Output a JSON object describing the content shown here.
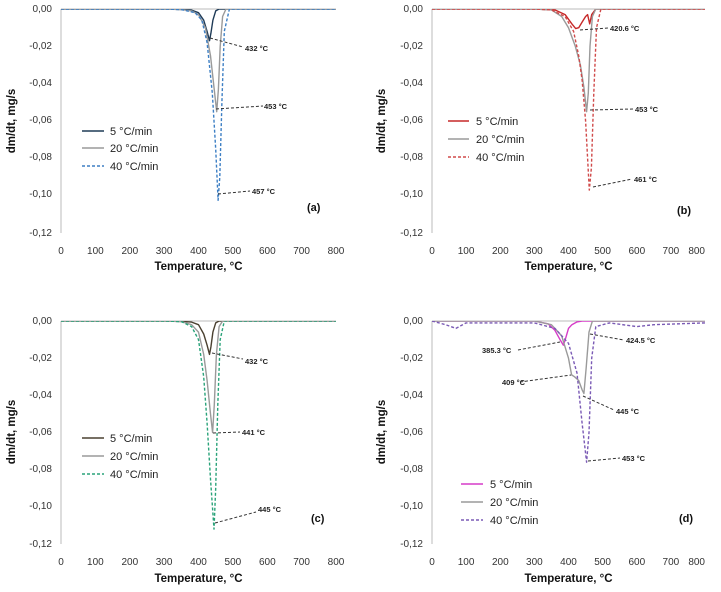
{
  "chart_data": [
    {
      "type": "line",
      "panel": "(a)",
      "xlabel": "Temperature, °C",
      "ylabel": "dm/dt, mg/s",
      "xlim": [
        0,
        800
      ],
      "ylim": [
        -0.12,
        0
      ],
      "xticks": [
        "0",
        "100",
        "200",
        "300",
        "400",
        "500",
        "600",
        "700",
        "800"
      ],
      "yticks": [
        "0,00",
        "-0,02",
        "-0,04",
        "-0,06",
        "-0,08",
        "-0,10",
        "-0,12"
      ],
      "legend_position": "middle-left",
      "series": [
        {
          "name": "5 °C/min",
          "color": "#1f3b57",
          "dash": "solid",
          "x": [
            0,
            300,
            360,
            380,
            400,
            415,
            425,
            432,
            436,
            442,
            450,
            460,
            480,
            800
          ],
          "y": [
            0,
            0,
            -0.0003,
            -0.0006,
            -0.002,
            -0.006,
            -0.012,
            -0.017,
            -0.013,
            -0.006,
            -0.001,
            0,
            0,
            0
          ]
        },
        {
          "name": "20 °C/min",
          "color": "#9a9a9a",
          "dash": "solid",
          "x": [
            0,
            300,
            350,
            380,
            400,
            420,
            435,
            445,
            453,
            458,
            463,
            470,
            480,
            800
          ],
          "y": [
            0,
            0,
            -0.0003,
            -0.001,
            -0.003,
            -0.01,
            -0.025,
            -0.042,
            -0.055,
            -0.043,
            -0.02,
            -0.004,
            0,
            0
          ]
        },
        {
          "name": "40 °C/min",
          "color": "#3d7fc4",
          "dash": "dashed",
          "x": [
            0,
            300,
            350,
            390,
            410,
            425,
            440,
            450,
            457,
            462,
            468,
            475,
            490,
            800
          ],
          "y": [
            0,
            0,
            -0.0003,
            -0.002,
            -0.006,
            -0.018,
            -0.045,
            -0.075,
            -0.1025,
            -0.09,
            -0.05,
            -0.012,
            0,
            0
          ]
        }
      ],
      "annotations": [
        "432 °C",
        "453 °C",
        "457 °C"
      ]
    },
    {
      "type": "line",
      "panel": "(b)",
      "xlabel": "Temperature, °C",
      "ylabel": "dm/dt, mg/s",
      "xlim": [
        0,
        800
      ],
      "ylim": [
        -0.12,
        0
      ],
      "xticks": [
        "0",
        "100",
        "200",
        "300",
        "400",
        "500",
        "600",
        "700",
        "800"
      ],
      "yticks": [
        "0,00",
        "-0,02",
        "-0,04",
        "-0,06",
        "-0,08",
        "-0,10",
        "-0,12"
      ],
      "legend_position": "middle-left",
      "series": [
        {
          "name": "5 °C/min",
          "color": "#c62828",
          "dash": "solid",
          "x": [
            0,
            300,
            360,
            390,
            410,
            421,
            430,
            440,
            450,
            456,
            462,
            468,
            480,
            800
          ],
          "y": [
            0,
            0,
            -0.0005,
            -0.003,
            -0.008,
            -0.0105,
            -0.01,
            -0.007,
            -0.004,
            -0.003,
            -0.008,
            -0.003,
            0,
            0
          ]
        },
        {
          "name": "20 °C/min",
          "color": "#9a9a9a",
          "dash": "solid",
          "x": [
            0,
            300,
            350,
            380,
            400,
            420,
            435,
            445,
            453,
            458,
            463,
            470,
            480,
            800
          ],
          "y": [
            0,
            0,
            -0.0005,
            -0.004,
            -0.01,
            -0.02,
            -0.03,
            -0.042,
            -0.055,
            -0.045,
            -0.02,
            -0.004,
            0,
            0
          ]
        },
        {
          "name": "40 °C/min",
          "color": "#d04a4a",
          "dash": "dashed",
          "x": [
            0,
            300,
            350,
            390,
            415,
            430,
            440,
            450,
            461,
            467,
            474,
            482,
            495,
            800
          ],
          "y": [
            0,
            0,
            -0.0005,
            -0.004,
            -0.012,
            -0.025,
            -0.038,
            -0.06,
            -0.097,
            -0.085,
            -0.045,
            -0.01,
            0,
            0
          ]
        }
      ],
      "annotations": [
        "420.6 °C",
        "453 °C",
        "461 °C"
      ]
    },
    {
      "type": "line",
      "panel": "(c)",
      "xlabel": "Temperature, °C",
      "ylabel": "dm/dt, mg/s",
      "xlim": [
        0,
        800
      ],
      "ylim": [
        -0.12,
        0
      ],
      "xticks": [
        "0",
        "100",
        "200",
        "300",
        "400",
        "500",
        "600",
        "700",
        "800"
      ],
      "yticks": [
        "0,00",
        "-0,02",
        "-0,04",
        "-0,06",
        "-0,08",
        "-0,10",
        "-0,12"
      ],
      "legend_position": "bottom-left",
      "series": [
        {
          "name": "5 °C/min",
          "color": "#4a4030",
          "dash": "solid",
          "x": [
            0,
            300,
            360,
            380,
            400,
            415,
            425,
            432,
            436,
            442,
            450,
            460,
            480,
            800
          ],
          "y": [
            0,
            0,
            -0.0003,
            -0.0006,
            -0.002,
            -0.007,
            -0.013,
            -0.018,
            -0.014,
            -0.006,
            -0.001,
            0,
            0,
            0
          ]
        },
        {
          "name": "20 °C/min",
          "color": "#9a9a9a",
          "dash": "solid",
          "x": [
            0,
            300,
            350,
            380,
            400,
            415,
            425,
            435,
            441,
            446,
            452,
            460,
            470,
            800
          ],
          "y": [
            0,
            0,
            -0.0003,
            -0.002,
            -0.006,
            -0.018,
            -0.032,
            -0.05,
            -0.06,
            -0.045,
            -0.018,
            -0.003,
            0,
            0
          ]
        },
        {
          "name": "40 °C/min",
          "color": "#2aa37a",
          "dash": "dashed",
          "x": [
            0,
            300,
            350,
            380,
            400,
            415,
            425,
            435,
            445,
            450,
            456,
            463,
            475,
            800
          ],
          "y": [
            0,
            0,
            -0.0003,
            -0.003,
            -0.01,
            -0.03,
            -0.055,
            -0.085,
            -0.112,
            -0.09,
            -0.045,
            -0.01,
            0,
            0
          ]
        }
      ],
      "annotations": [
        "432 °C",
        "441 °C",
        "445 °C"
      ]
    },
    {
      "type": "line",
      "panel": "(d)",
      "xlabel": "Temperature, °C",
      "ylabel": "dm/dt, mg/s",
      "xlim": [
        0,
        800
      ],
      "ylim": [
        -0.12,
        0
      ],
      "xticks": [
        "0",
        "100",
        "200",
        "300",
        "400",
        "500",
        "600",
        "700",
        "800"
      ],
      "yticks": [
        "0,00",
        "-0,02",
        "-0,04",
        "-0,06",
        "-0,08",
        "-0,10",
        "-0,12"
      ],
      "legend_position": "bottom-left",
      "series": [
        {
          "name": "5 °C/min",
          "color": "#d63cc8",
          "dash": "solid",
          "x": [
            0,
            300,
            340,
            360,
            375,
            385,
            392,
            400,
            410,
            425,
            440,
            800
          ],
          "y": [
            0,
            0,
            -0.0015,
            -0.005,
            -0.01,
            -0.013,
            -0.009,
            -0.004,
            -0.002,
            -0.0005,
            0,
            0
          ]
        },
        {
          "name": "20 °C/min",
          "color": "#9a9a9a",
          "dash": "solid",
          "x": [
            0,
            300,
            350,
            380,
            400,
            409,
            418,
            430,
            440,
            445,
            452,
            460,
            470,
            800
          ],
          "y": [
            0,
            0,
            -0.002,
            -0.008,
            -0.02,
            -0.029,
            -0.03,
            -0.032,
            -0.037,
            -0.039,
            -0.025,
            -0.006,
            0,
            0
          ]
        },
        {
          "name": "40 °C/min",
          "color": "#7a5ab5",
          "dash": "dashed",
          "x": [
            0,
            40,
            70,
            100,
            300,
            360,
            400,
            425,
            440,
            453,
            460,
            468,
            480,
            520,
            600,
            650,
            800
          ],
          "y": [
            0,
            -0.002,
            -0.004,
            -0.001,
            -0.001,
            -0.004,
            -0.012,
            -0.028,
            -0.055,
            -0.076,
            -0.06,
            -0.02,
            -0.003,
            -0.001,
            -0.003,
            -0.002,
            -0.001
          ]
        }
      ],
      "annotations": [
        "385.3 °C",
        "424.5 °C",
        "409 °C",
        "445 °C",
        "453 °C"
      ]
    }
  ]
}
